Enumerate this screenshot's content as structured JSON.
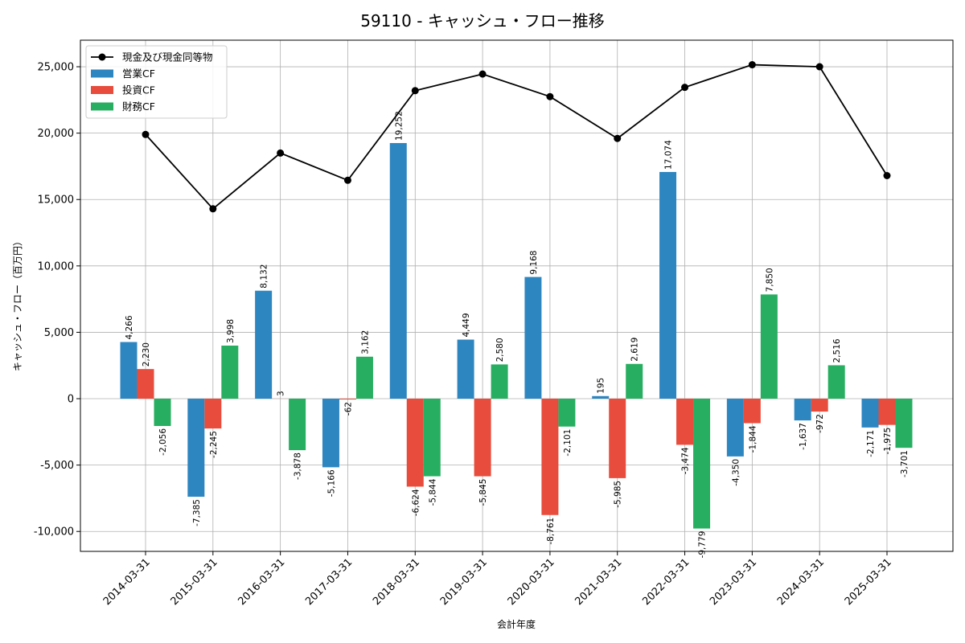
{
  "chart_data": {
    "type": "bar",
    "title": "59110 - キャッシュ・フロー推移",
    "xlabel": "会計年度",
    "ylabel": "キャッシュ・フロー（百万円）",
    "ylim": [
      -11500,
      27000
    ],
    "yticks": [
      -10000,
      -5000,
      0,
      5000,
      10000,
      15000,
      20000,
      25000
    ],
    "ytick_labels": [
      "-10,000",
      "-5,000",
      "0",
      "5,000",
      "10,000",
      "15,000",
      "20,000",
      "25,000"
    ],
    "grid": true,
    "legend_position": "top-left",
    "categories": [
      "2014-03-31",
      "2015-03-31",
      "2016-03-31",
      "2017-03-31",
      "2018-03-31",
      "2019-03-31",
      "2020-03-31",
      "2021-03-31",
      "2022-03-31",
      "2023-03-31",
      "2024-03-31",
      "2025-03-31"
    ],
    "series": [
      {
        "name": "営業CF",
        "kind": "bar",
        "color": "#2e86c1",
        "values": [
          4266,
          -7385,
          8132,
          -5166,
          19252,
          4449,
          9168,
          195,
          17074,
          -4350,
          -1637,
          -2171
        ],
        "labels": [
          "4,266",
          "-7,385",
          "8,132",
          "-5,166",
          "19,252",
          "4,449",
          "9,168",
          "195",
          "17,074",
          "-4,350",
          "-1,637",
          "-2,171"
        ]
      },
      {
        "name": "投資CF",
        "kind": "bar",
        "color": "#e74c3c",
        "values": [
          2230,
          -2245,
          3,
          -62,
          -6624,
          -5845,
          -8761,
          -5985,
          -3474,
          -1844,
          -972,
          -1975
        ],
        "labels": [
          "2,230",
          "-2,245",
          "3",
          "-62",
          "-6,624",
          "-5,845",
          "-8,761",
          "-5,985",
          "-3,474",
          "-1,844",
          "-972",
          "-1,975"
        ]
      },
      {
        "name": "財務CF",
        "kind": "bar",
        "color": "#27ae60",
        "values": [
          -2056,
          3998,
          -3878,
          3162,
          -5844,
          2580,
          -2101,
          2619,
          -9779,
          7850,
          2516,
          -3701
        ],
        "labels": [
          "-2,056",
          "3,998",
          "-3,878",
          "3,162",
          "-5,844",
          "2,580",
          "-2,101",
          "2,619",
          "-9,779",
          "7,850",
          "2,516",
          "-3,701"
        ]
      },
      {
        "name": "現金及び現金同等物",
        "kind": "line",
        "color": "#000000",
        "values": [
          19900,
          14300,
          18500,
          16450,
          23200,
          24450,
          22750,
          19600,
          23450,
          25150,
          25000,
          16800
        ]
      }
    ]
  }
}
